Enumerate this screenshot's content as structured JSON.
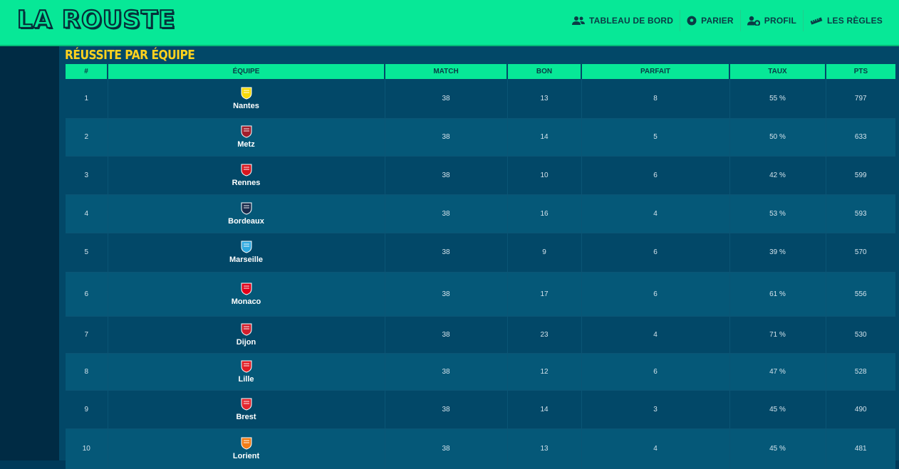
{
  "app": {
    "logo_text": "LA ROUSTE"
  },
  "nav": [
    {
      "label": "TABLEAU DE BORD",
      "icon": "users-icon"
    },
    {
      "label": "PARIER",
      "icon": "football-icon"
    },
    {
      "label": "PROFIL",
      "icon": "user-gear-icon"
    },
    {
      "label": "LES RÈGLES",
      "icon": "ruler-icon"
    }
  ],
  "page": {
    "title": "RÉUSSITE PAR ÉQUIPE"
  },
  "table": {
    "headers": [
      "#",
      "ÉQUIPE",
      "MATCH",
      "BON",
      "PARFAIT",
      "TAUX",
      "PTS"
    ],
    "rows": [
      {
        "rank": "1",
        "team": "Nantes",
        "match": "38",
        "bon": "13",
        "parfait": "8",
        "taux": "55 %",
        "pts": "797",
        "crest_color": "#f5d90a"
      },
      {
        "rank": "2",
        "team": "Metz",
        "match": "38",
        "bon": "14",
        "parfait": "5",
        "taux": "50 %",
        "pts": "633",
        "crest_color": "#a21d2b"
      },
      {
        "rank": "3",
        "team": "Rennes",
        "match": "38",
        "bon": "10",
        "parfait": "6",
        "taux": "42 %",
        "pts": "599",
        "crest_color": "#d7161e"
      },
      {
        "rank": "4",
        "team": "Bordeaux",
        "match": "38",
        "bon": "16",
        "parfait": "4",
        "taux": "53 %",
        "pts": "593",
        "crest_color": "#1a2b4c"
      },
      {
        "rank": "5",
        "team": "Marseille",
        "match": "38",
        "bon": "9",
        "parfait": "6",
        "taux": "39 %",
        "pts": "570",
        "crest_color": "#2fa9e0"
      },
      {
        "rank": "6",
        "team": "Monaco",
        "match": "38",
        "bon": "17",
        "parfait": "6",
        "taux": "61 %",
        "pts": "556",
        "crest_color": "#e2001a"
      },
      {
        "rank": "7",
        "team": "Dijon",
        "match": "38",
        "bon": "23",
        "parfait": "4",
        "taux": "71 %",
        "pts": "530",
        "crest_color": "#d2202e"
      },
      {
        "rank": "8",
        "team": "Lille",
        "match": "38",
        "bon": "12",
        "parfait": "6",
        "taux": "47 %",
        "pts": "528",
        "crest_color": "#e01e26"
      },
      {
        "rank": "9",
        "team": "Brest",
        "match": "38",
        "bon": "14",
        "parfait": "3",
        "taux": "45 %",
        "pts": "490",
        "crest_color": "#e3262f"
      },
      {
        "rank": "10",
        "team": "Lorient",
        "match": "38",
        "bon": "13",
        "parfait": "4",
        "taux": "45 %",
        "pts": "481",
        "crest_color": "#f07d19"
      }
    ]
  }
}
